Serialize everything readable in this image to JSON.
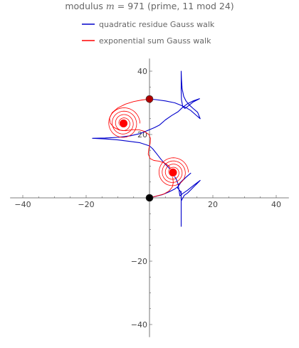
{
  "chart_data": {
    "type": "line",
    "title": {
      "prefix": "modulus",
      "var": "m",
      "eq": "=",
      "value": "971",
      "note": "(prime, 11 mod 24)"
    },
    "xlabel": "",
    "ylabel": "",
    "xlim": [
      -44,
      44
    ],
    "ylim": [
      -44,
      44
    ],
    "xticks": [
      -40,
      -20,
      20,
      40
    ],
    "yticks": [
      -40,
      -20,
      20,
      40
    ],
    "grid": false,
    "legend_placement": "top-center",
    "series": [
      {
        "name": "quadratic residue Gauss walk",
        "color": "#0000cc",
        "points": [
          [
            0,
            0
          ],
          [
            2,
            0.5
          ],
          [
            4,
            1
          ],
          [
            6,
            1.8
          ],
          [
            8,
            2.8
          ],
          [
            9,
            3.6
          ],
          [
            10,
            5
          ],
          [
            11.5,
            6.5
          ],
          [
            13,
            7.8
          ],
          [
            10.5,
            5.6
          ],
          [
            9.5,
            4.6
          ],
          [
            8.8,
            3.2
          ],
          [
            9.8,
            2
          ],
          [
            10,
            1
          ],
          [
            10,
            -2
          ],
          [
            10,
            -6
          ],
          [
            10,
            -9
          ],
          [
            10,
            -5
          ],
          [
            10,
            -1
          ],
          [
            10,
            2
          ],
          [
            10,
            -1
          ],
          [
            11,
            0.8
          ],
          [
            12,
            1.5
          ],
          [
            13,
            2.5
          ],
          [
            14,
            3.5
          ],
          [
            15,
            4.5
          ],
          [
            16,
            5.5
          ],
          [
            14,
            4
          ],
          [
            12,
            2.4
          ],
          [
            10.4,
            1.3
          ],
          [
            9.6,
            0.6
          ],
          [
            9,
            4.4
          ],
          [
            8.4,
            6
          ],
          [
            7.6,
            7.2
          ],
          [
            7,
            8.4
          ],
          [
            6,
            9.6
          ],
          [
            4.8,
            10.8
          ],
          [
            3.6,
            12.2
          ],
          [
            2.2,
            14
          ],
          [
            1,
            15.5
          ],
          [
            0,
            16.4
          ],
          [
            -3,
            17.4
          ],
          [
            -6,
            17.8
          ],
          [
            -10,
            18.3
          ],
          [
            -14,
            18.6
          ],
          [
            -18,
            18.8
          ],
          [
            -14,
            18.9
          ],
          [
            -10,
            19.1
          ],
          [
            -6,
            19.6
          ],
          [
            -3,
            20.3
          ],
          [
            0,
            21.5
          ],
          [
            1.6,
            22.2
          ],
          [
            3.2,
            23
          ],
          [
            5,
            24.6
          ],
          [
            7,
            26
          ],
          [
            9,
            27.2
          ],
          [
            10.5,
            28.6
          ],
          [
            12,
            29.7
          ],
          [
            13.8,
            30.6
          ],
          [
            15.8,
            31.3
          ],
          [
            13.8,
            30.3
          ],
          [
            12.2,
            29
          ],
          [
            11.2,
            28.2
          ],
          [
            10.5,
            28.8
          ],
          [
            10.1,
            31
          ],
          [
            10,
            34
          ],
          [
            10,
            37
          ],
          [
            10,
            40
          ],
          [
            10.1,
            37.5
          ],
          [
            10.3,
            34.5
          ],
          [
            10.8,
            32
          ],
          [
            11.5,
            30.6
          ],
          [
            12.5,
            29.4
          ],
          [
            13.8,
            28.2
          ],
          [
            15.2,
            27
          ],
          [
            16,
            25
          ],
          [
            14.5,
            26.3
          ],
          [
            13,
            27.6
          ],
          [
            11.5,
            28.5
          ],
          [
            10,
            29.2
          ],
          [
            8,
            30
          ],
          [
            5,
            30.6
          ],
          [
            2,
            31
          ],
          [
            0,
            31.2
          ]
        ]
      },
      {
        "name": "exponential sum Gauss walk",
        "color": "#ff0000",
        "points": [
          [
            0,
            0
          ],
          [
            2,
            0.5
          ],
          [
            4.5,
            1.2
          ],
          [
            6.2,
            2.2
          ],
          [
            7.2,
            3.4
          ],
          [
            7.5,
            4.8
          ],
          [
            7.4,
            6
          ],
          [
            7.2,
            7.4
          ],
          [
            7,
            8.6
          ],
          [
            6.2,
            10
          ],
          [
            4.8,
            11
          ],
          [
            3,
            11.6
          ],
          [
            1.4,
            11.8
          ],
          [
            0.2,
            12.4
          ],
          [
            -0.4,
            13.8
          ],
          [
            -0.2,
            15.5
          ],
          [
            0.2,
            17.2
          ],
          [
            0.3,
            18.8
          ],
          [
            -0.2,
            20
          ],
          [
            -1.6,
            21
          ],
          [
            -3.4,
            21.5
          ],
          [
            -5.5,
            21.5
          ],
          [
            -7.5,
            21.2
          ],
          [
            -9.5,
            21.4
          ],
          [
            -11.2,
            22.2
          ],
          [
            -12.4,
            23.6
          ],
          [
            -12.6,
            25.2
          ],
          [
            -11.8,
            26.9
          ],
          [
            -10,
            28.4
          ],
          [
            -7.6,
            29.6
          ],
          [
            -5,
            30.4
          ],
          [
            -2.4,
            30.9
          ],
          [
            0,
            31.2
          ]
        ]
      }
    ],
    "markers": [
      {
        "name": "start",
        "x": 0,
        "y": 0,
        "color": "#000000"
      },
      {
        "name": "end",
        "x": 0,
        "y": 31.2,
        "color": "#b00000"
      }
    ],
    "spirals": [
      {
        "cx": -8.2,
        "cy": 23.5,
        "turns": 4.5,
        "rmax": 4.8,
        "color": "#ff0000"
      },
      {
        "cx": 7.4,
        "cy": 8.0,
        "turns": 4.5,
        "rmax": 4.5,
        "color": "#ff0000"
      }
    ]
  }
}
